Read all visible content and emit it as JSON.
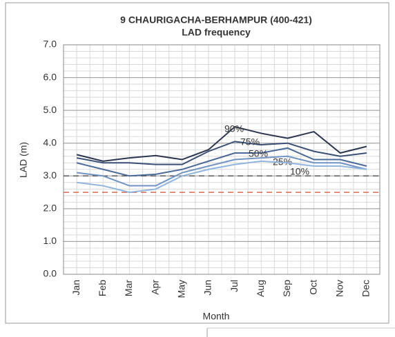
{
  "chart_data": {
    "type": "line",
    "title": "9 CHAURIGACHA-BERHAMPUR (400-421)",
    "subtitle": "LAD frequency",
    "x_label": "Month",
    "y_label": "LAD (m)",
    "categories": [
      "Jan",
      "Feb",
      "Mar",
      "Apr",
      "May",
      "Jun",
      "Jul",
      "Aug",
      "Sep",
      "Oct",
      "Nov",
      "Dec"
    ],
    "series": [
      {
        "name": "90%",
        "color": "#2b3550",
        "values": [
          3.65,
          3.45,
          3.55,
          3.62,
          3.5,
          3.8,
          4.5,
          4.3,
          4.15,
          4.35,
          3.7,
          3.9
        ]
      },
      {
        "name": "75%",
        "color": "#3a4f75",
        "values": [
          3.55,
          3.4,
          3.4,
          3.35,
          3.35,
          3.75,
          4.05,
          3.95,
          4.0,
          3.75,
          3.6,
          3.7
        ]
      },
      {
        "name": "50%",
        "color": "#4a6a9a",
        "values": [
          3.4,
          3.2,
          3.0,
          3.05,
          3.2,
          3.45,
          3.7,
          3.7,
          3.85,
          3.5,
          3.5,
          3.3
        ]
      },
      {
        "name": "25%",
        "color": "#6f93c2",
        "values": [
          3.1,
          3.0,
          2.7,
          2.7,
          3.1,
          3.3,
          3.5,
          3.55,
          3.6,
          3.4,
          3.4,
          3.2
        ]
      },
      {
        "name": "10%",
        "color": "#8fb4de",
        "values": [
          2.8,
          2.7,
          2.5,
          2.6,
          3.0,
          3.2,
          3.35,
          3.45,
          3.4,
          3.3,
          3.3,
          3.2
        ]
      }
    ],
    "reference_lines": [
      {
        "value": 3.0,
        "color": "#555555"
      },
      {
        "value": 2.5,
        "color": "#d9694f"
      }
    ],
    "ylim": [
      0,
      7
    ],
    "yticks": [
      {
        "value": 0,
        "label": "0.0"
      },
      {
        "value": 1,
        "label": "1.0"
      },
      {
        "value": 2,
        "label": "2.0"
      },
      {
        "value": 3,
        "label": "3.0"
      },
      {
        "value": 4,
        "label": "4.0"
      },
      {
        "value": 5,
        "label": "5.0"
      },
      {
        "value": 6,
        "label": "6.0"
      },
      {
        "value": 7,
        "label": "7.0"
      }
    ],
    "minor_grid_step": 0.2,
    "grid": true
  }
}
